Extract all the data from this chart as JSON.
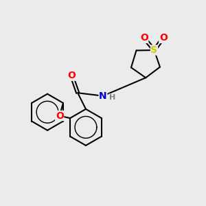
{
  "background_color": "#ebebeb",
  "bond_color": "#000000",
  "bond_width": 1.5,
  "atom_colors": {
    "O": "#ff0000",
    "N": "#0000cc",
    "S": "#cccc00",
    "H": "#808080"
  },
  "font_size": 10,
  "font_size_h": 8
}
